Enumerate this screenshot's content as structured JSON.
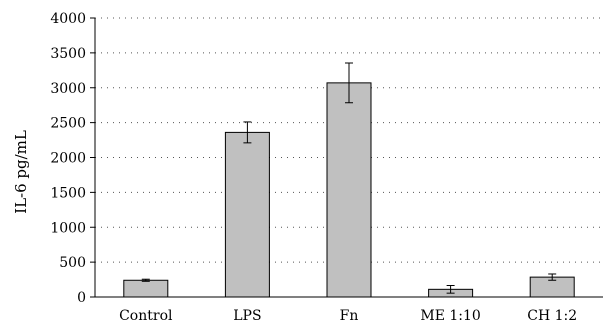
{
  "chart_data": {
    "type": "bar",
    "title": "",
    "xlabel": "",
    "ylabel": "IL-6 pg/mL",
    "categories": [
      "Control",
      "LPS",
      "Fn",
      "ME 1:10",
      "CH 1:2"
    ],
    "values": [
      240,
      2360,
      3070,
      110,
      285
    ],
    "errors": [
      15,
      150,
      285,
      55,
      45
    ],
    "ylim": [
      0,
      4000
    ],
    "yticks": [
      0,
      500,
      1000,
      1500,
      2000,
      2500,
      3000,
      3500,
      4000
    ],
    "grid": true,
    "bar_color": "#c0c0c0",
    "legend": "none"
  }
}
